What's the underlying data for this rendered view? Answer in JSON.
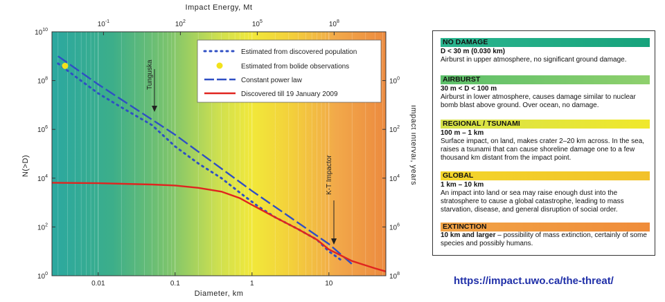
{
  "chart_data": {
    "type": "line",
    "title": "",
    "xlabel": "Diameter,  km",
    "ylabel": "N(>D)",
    "top_axis_label": "Impact Energy, Mt",
    "right_axis_label": "Impact Interval, years",
    "x_scale": "log",
    "y_scale": "log",
    "xlim": [
      0.0025,
      55
    ],
    "ylim": [
      1,
      10000000000
    ],
    "x_ticks": [
      {
        "value": 0.01,
        "label": "0.01"
      },
      {
        "value": 0.1,
        "label": "0.1"
      },
      {
        "value": 1,
        "label": "1"
      },
      {
        "value": 10,
        "label": "10"
      }
    ],
    "y_ticks": [
      {
        "value": 1,
        "base": "10",
        "exp": "0"
      },
      {
        "value": 100,
        "base": "10",
        "exp": "2"
      },
      {
        "value": 10000,
        "base": "10",
        "exp": "4"
      },
      {
        "value": 1000000,
        "base": "10",
        "exp": "6"
      },
      {
        "value": 100000000,
        "base": "10",
        "exp": "8"
      },
      {
        "value": 10000000000,
        "base": "10",
        "exp": "10"
      }
    ],
    "top_ticks": [
      {
        "x": 0.0117,
        "base": "10",
        "exp": "-1"
      },
      {
        "x": 0.117,
        "base": "10",
        "exp": "2"
      },
      {
        "x": 1.17,
        "base": "10",
        "exp": "5"
      },
      {
        "x": 11.7,
        "base": "10",
        "exp": "8"
      }
    ],
    "right_ticks": [
      {
        "y": 100000000,
        "base": "10",
        "exp": "0"
      },
      {
        "y": 1000000,
        "base": "10",
        "exp": "2"
      },
      {
        "y": 10000,
        "base": "10",
        "exp": "4"
      },
      {
        "y": 100,
        "base": "10",
        "exp": "6"
      },
      {
        "y": 1,
        "base": "10",
        "exp": "8"
      }
    ],
    "series": [
      {
        "name": "Estimated from discovered population",
        "style": "dotted",
        "color": "#2f4fc4",
        "points": [
          [
            0.003,
            500000000
          ],
          [
            0.005,
            150000000
          ],
          [
            0.01,
            30000000
          ],
          [
            0.02,
            8000000
          ],
          [
            0.05,
            1500000
          ],
          [
            0.1,
            200000
          ],
          [
            0.2,
            40000
          ],
          [
            0.4,
            10000
          ],
          [
            0.7,
            2500
          ],
          [
            1.2,
            700
          ],
          [
            2,
            250
          ],
          [
            4,
            80
          ],
          [
            7,
            30
          ],
          [
            10,
            10
          ],
          [
            15,
            4
          ]
        ]
      },
      {
        "name": "Estimated from bolide observations",
        "style": "marker",
        "color": "#f2e21c",
        "points": [
          [
            0.0037,
            400000000
          ]
        ]
      },
      {
        "name": "Constant power law",
        "style": "dashed",
        "color": "#2f4fc4",
        "points": [
          [
            0.003,
            1000000000
          ],
          [
            0.01,
            70000000
          ],
          [
            0.1,
            600000
          ],
          [
            1,
            3000
          ],
          [
            10,
            20
          ],
          [
            20,
            3
          ]
        ]
      },
      {
        "name": "Discovered till 19 January 2009",
        "style": "solid",
        "color": "#e0241f",
        "points": [
          [
            0.0025,
            6500
          ],
          [
            0.01,
            6200
          ],
          [
            0.05,
            5500
          ],
          [
            0.1,
            5000
          ],
          [
            0.2,
            4000
          ],
          [
            0.4,
            2800
          ],
          [
            0.7,
            1500
          ],
          [
            1,
            800
          ],
          [
            2,
            250
          ],
          [
            4,
            80
          ],
          [
            7,
            30
          ],
          [
            10,
            12
          ],
          [
            20,
            4
          ],
          [
            40,
            2
          ],
          [
            55,
            1.5
          ]
        ]
      }
    ],
    "annotations": [
      {
        "text": "Tunguska",
        "x": 0.05
      },
      {
        "text": "K-T Impactor",
        "x": 12
      }
    ],
    "grid": true,
    "legend_position": "top-right"
  },
  "categories": [
    {
      "title": "NO DAMAGE",
      "range": "D < 30 m (0.030 km)",
      "description": "Airburst in upper atmosphere, no significant ground damage.",
      "color_from": "#2bb58f",
      "color_to": "#17a37c"
    },
    {
      "title": "AIRBURST",
      "range": "30 m < D < 100 m",
      "description": "Airburst in lower atmosphere, causes damage similar to nuclear bomb blast above ground. Over ocean, no damage.",
      "color_from": "#5cbf6a",
      "color_to": "#8fd06d"
    },
    {
      "title": "REGIONAL / TSUNAMI",
      "range": "100 m – 1 km",
      "description": "Surface impact, on land, makes crater 2–20 km across. In the sea, raises a tsunami that can cause shoreline damage one to a few thousand km distant from the impact point.",
      "color_from": "#d6e24a",
      "color_to": "#f0e82c"
    },
    {
      "title": "GLOBAL",
      "range": "1 km – 10 km",
      "description": "An impact into land or sea may raise enough dust into the stratosphere to cause a global catastrophe, leading to mass starvation, disease, and general disruption of social order.",
      "color_from": "#f3d62a",
      "color_to": "#f2c12a"
    },
    {
      "title": "EXTINCTION",
      "range_bold": "10 km and larger",
      "range_rest": " – possibility of mass extinction, certainly of some species and possibly humans.",
      "color_from": "#f2a446",
      "color_to": "#ef8c3a"
    }
  ],
  "source_url": "https://impact.uwo.ca/the-threat/"
}
